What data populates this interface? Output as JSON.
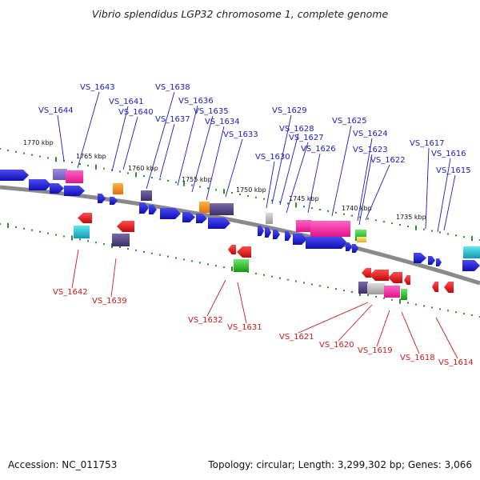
{
  "title": "Vibrio splendidus LGP32 chromosome 1, complete genome",
  "footer": {
    "accession": "Accession: NC_011753",
    "summary": "Topology: circular; Length: 3,299,302 bp; Genes: 3,066"
  },
  "colors": {
    "strand_plus": "#1a1adc",
    "strand_minus": "#e01818",
    "label_plus": "#1a1ac8",
    "label_minus": "#d01818",
    "backbone": "#8a8a8a",
    "tick": "#2e8b2e"
  },
  "kbp_labels": [
    "1770 kbp",
    "1765 kbp",
    "1760 kbp",
    "1755 kbp",
    "1750 kbp",
    "1745 kbp",
    "1740 kbp",
    "1735 kbp"
  ],
  "plus_genes": [
    "VS_1644",
    "VS_1643",
    "VS_1641",
    "VS_1640",
    "VS_1638",
    "VS_1637",
    "VS_1636",
    "VS_1635",
    "VS_1634",
    "VS_1633",
    "VS_1630",
    "VS_1629",
    "VS_1628",
    "VS_1627",
    "VS_1626",
    "VS_1625",
    "VS_1624",
    "VS_1623",
    "VS_1622",
    "VS_1617",
    "VS_1616",
    "VS_1615"
  ],
  "minus_genes": [
    "VS_1642",
    "VS_1639",
    "VS_1632",
    "VS_1631",
    "VS_1621",
    "VS_1620",
    "VS_1619",
    "VS_1618",
    "VS_1614"
  ]
}
